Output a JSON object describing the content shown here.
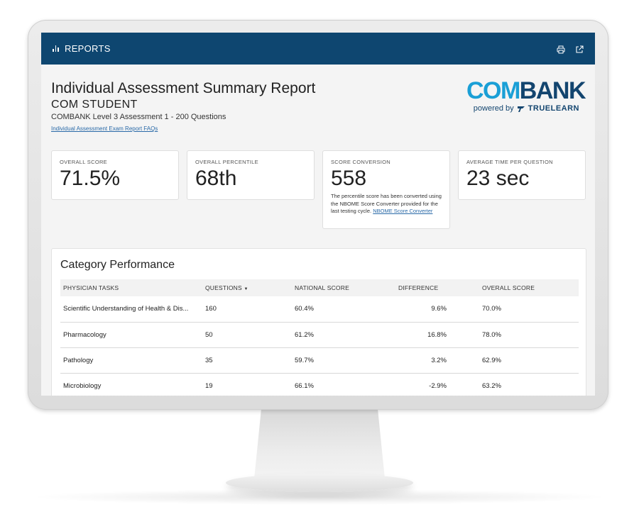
{
  "topbar": {
    "reports_label": "REPORTS",
    "print_icon": "print-icon",
    "open_icon": "external-link-icon",
    "color": "#0e4670"
  },
  "header": {
    "title": "Individual Assessment Summary Report",
    "student": "COM STUDENT",
    "assessment": "COMBANK Level 3 Assessment 1 - 200 Questions",
    "faq_link": "Individual Assessment Exam Report FAQs"
  },
  "logo": {
    "com": "COM",
    "bank": "BANK",
    "powered": "powered by",
    "truelearn": "TRUELEARN",
    "colors": {
      "com": "#1a9fd6",
      "bank": "#13456f"
    }
  },
  "cards": [
    {
      "label": "OVERALL SCORE",
      "value": "71.5%"
    },
    {
      "label": "OVERALL PERCENTILE",
      "value": "68th"
    },
    {
      "label": "SCORE CONVERSION",
      "value": "558",
      "note": "The percentile score has been converted using the NBOME Score Converter provided for the last testing cycle.",
      "link": "NBOME Score Converter"
    },
    {
      "label": "AVERAGE TIME PER QUESTION",
      "value": "23 sec"
    }
  ],
  "category": {
    "title": "Category Performance",
    "columns": {
      "task": "PHYSICIAN TASKS",
      "questions": "QUESTIONS",
      "sort_indicator": "▼",
      "national": "NATIONAL SCORE",
      "difference": "DIFFERENCE",
      "overall": "OVERALL SCORE"
    },
    "rows": [
      {
        "task": "Scientific Understanding of Health & Dis...",
        "questions": "160",
        "national": "60.4%",
        "difference": "9.6%",
        "overall": "70.0%"
      },
      {
        "task": "Pharmacology",
        "questions": "50",
        "national": "61.2%",
        "difference": "16.8%",
        "overall": "78.0%"
      },
      {
        "task": "Pathology",
        "questions": "35",
        "national": "59.7%",
        "difference": "3.2%",
        "overall": "62.9%"
      },
      {
        "task": "Microbiology",
        "questions": "19",
        "national": "66.1%",
        "difference": "-2.9%",
        "overall": "63.2%"
      }
    ]
  }
}
